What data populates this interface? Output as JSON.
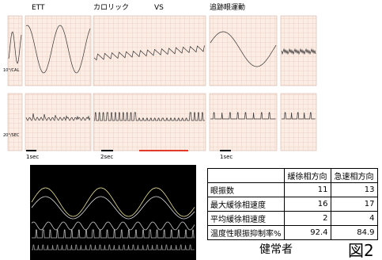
{
  "figure": {
    "labels": {
      "ett": "ETT",
      "caloric": "カロリック",
      "vs": "VS",
      "pursuit": "追跡眼運動"
    },
    "scale_top": "10°/CAL",
    "scale_bottom": "20°/SEC",
    "time_marks": [
      "1sec",
      "2sec",
      "1sec"
    ]
  },
  "table": {
    "header": [
      "緩徐相方向",
      "急速相方向"
    ],
    "rows": [
      [
        "眼振数",
        11,
        13
      ],
      [
        "最大緩徐相速度",
        16,
        17
      ],
      [
        "平均緩徐相速度",
        2,
        4
      ],
      [
        "温度性眼振抑制率%",
        92.4,
        84.9
      ]
    ]
  },
  "caption": {
    "subject": "健常者",
    "figure_no": "図2"
  }
}
